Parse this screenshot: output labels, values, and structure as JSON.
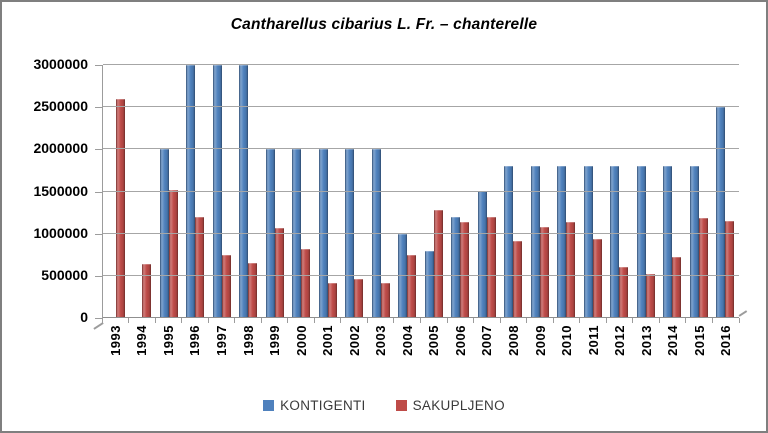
{
  "chart_data": {
    "type": "bar",
    "title": "Cantharellus cibarius L. Fr. – chanterelle",
    "categories": [
      "1993",
      "1994",
      "1995",
      "1996",
      "1997",
      "1998",
      "1999",
      "2000",
      "2001",
      "2002",
      "2003",
      "2004",
      "2005",
      "2006",
      "2007",
      "2008",
      "2009",
      "2010",
      "2011",
      "2012",
      "2013",
      "2014",
      "2015",
      "2016"
    ],
    "series": [
      {
        "name": "KONTIGENTI",
        "color": "#4F81BD",
        "values": [
          0,
          0,
          2000000,
          3000000,
          3000000,
          3000000,
          2000000,
          2000000,
          2000000,
          2000000,
          2000000,
          1000000,
          800000,
          1200000,
          1500000,
          1800000,
          1800000,
          1800000,
          1800000,
          1800000,
          1800000,
          1800000,
          1800000,
          2500000
        ]
      },
      {
        "name": "SAKUPLJENO",
        "color": "#BE4B48",
        "values": [
          2600000,
          640000,
          1520000,
          1200000,
          750000,
          650000,
          1070000,
          820000,
          410000,
          460000,
          410000,
          750000,
          1280000,
          1140000,
          1200000,
          910000,
          1080000,
          1140000,
          940000,
          600000,
          520000,
          720000,
          1180000,
          1150000
        ]
      }
    ],
    "xlabel": "",
    "ylabel": "",
    "ylim": [
      0,
      3000000
    ],
    "ytick_interval": 500000,
    "yticks": [
      "0",
      "500000",
      "1000000",
      "1500000",
      "2000000",
      "2500000",
      "3000000"
    ],
    "grid": true,
    "legend_position": "bottom",
    "colors": {
      "gridline": "#A6A6A6",
      "axis": "#8F8F8F",
      "tick_text": "#000000",
      "legend_text": "#3A3A3A",
      "frame_border": "#7F7F7F",
      "background": "#FFFFFF"
    }
  }
}
